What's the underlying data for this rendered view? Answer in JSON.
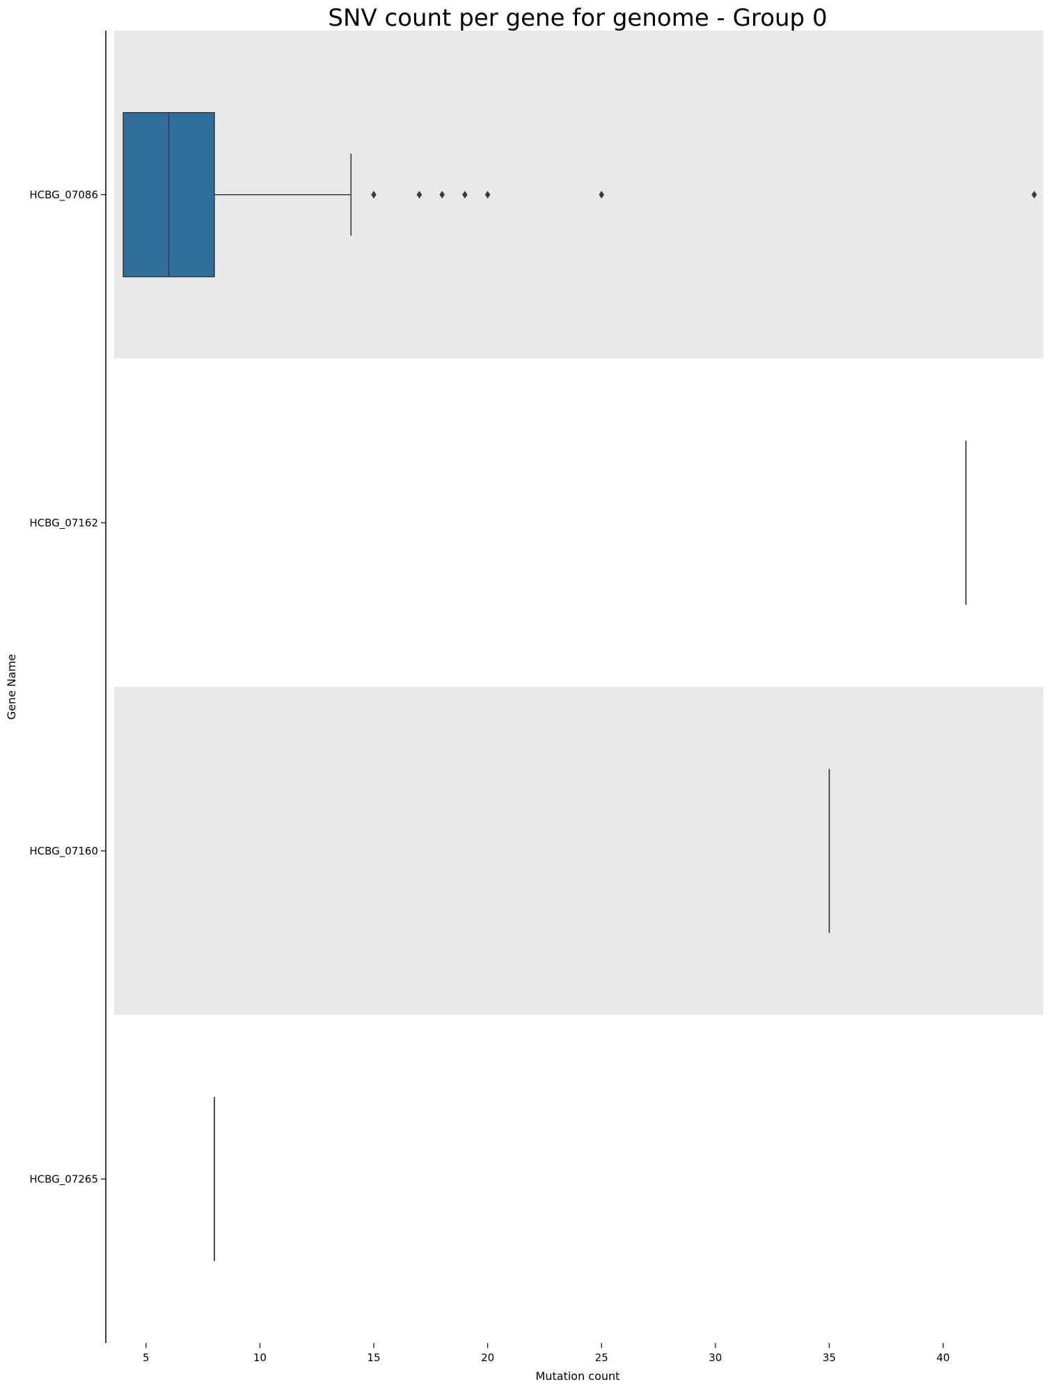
{
  "chart_data": {
    "type": "boxplot",
    "orientation": "horizontal",
    "title": "SNV count per gene for genome - Group 0",
    "xlabel": "Mutation count",
    "ylabel": "Gene Name",
    "xlim": [
      3.6,
      44.4
    ],
    "xticks": [
      5,
      10,
      15,
      20,
      25,
      30,
      35,
      40
    ],
    "grid": false,
    "legend": "none",
    "box_color": "#2f6f9a",
    "band_color": "#e9e9e9",
    "line_color": "#3a3a3a",
    "categories": [
      "HCBG_07086",
      "HCBG_07162",
      "HCBG_07160",
      "HCBG_07265"
    ],
    "boxes": [
      {
        "category": "HCBG_07086",
        "q1": 4,
        "median": 6,
        "q3": 8,
        "whisker_low": 4,
        "whisker_high": 14,
        "outliers": [
          15,
          17,
          18,
          19,
          20,
          25,
          44
        ]
      },
      {
        "category": "HCBG_07162",
        "q1": 41,
        "median": 41,
        "q3": 41,
        "whisker_low": 41,
        "whisker_high": 41,
        "outliers": []
      },
      {
        "category": "HCBG_07160",
        "q1": 35,
        "median": 35,
        "q3": 35,
        "whisker_low": 35,
        "whisker_high": 35,
        "outliers": []
      },
      {
        "category": "HCBG_07265",
        "q1": 8,
        "median": 8,
        "q3": 8,
        "whisker_low": 8,
        "whisker_high": 8,
        "outliers": []
      }
    ]
  }
}
